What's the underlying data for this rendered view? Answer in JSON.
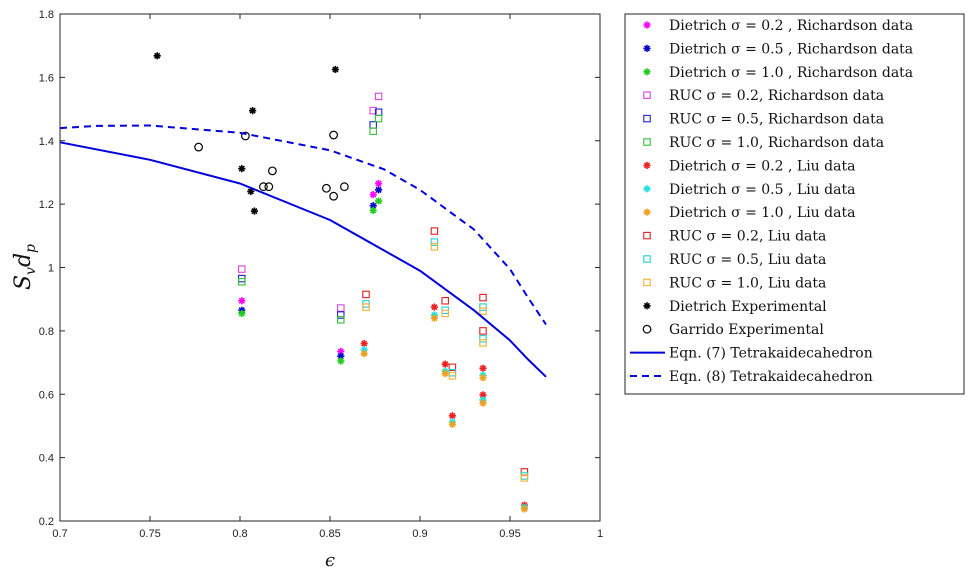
{
  "chart_data": {
    "type": "scatter",
    "title": "",
    "xlabel": "ϵ",
    "ylabel": "S",
    "ylabel_sub": "v",
    "ylabel_main2": "d",
    "ylabel_sub2": "p",
    "xlim": [
      0.7,
      1.0
    ],
    "ylim": [
      0.2,
      1.8
    ],
    "xticks": [
      "0.7",
      "0.75",
      "0.8",
      "0.85",
      "0.9",
      "0.95",
      "1"
    ],
    "yticks": [
      "0.2",
      "0.4",
      "0.6",
      "0.8",
      "1",
      "1.2",
      "1.4",
      "1.6",
      "1.8"
    ],
    "grid": false,
    "legend_position": "outside-right",
    "series": [
      {
        "name": "Dietrich σ = 0.2 , Richardson data",
        "marker": "asterisk",
        "color": "#ff00ff",
        "points": [
          [
            0.801,
            0.895
          ],
          [
            0.856,
            0.735
          ],
          [
            0.874,
            1.23
          ],
          [
            0.877,
            1.265
          ]
        ]
      },
      {
        "name": "Dietrich σ = 0.5 , Richardson data",
        "marker": "asterisk",
        "color": "#0000cc",
        "points": [
          [
            0.801,
            0.865
          ],
          [
            0.856,
            0.72
          ],
          [
            0.874,
            1.195
          ],
          [
            0.877,
            1.245
          ]
        ]
      },
      {
        "name": "Dietrich σ = 1.0 , Richardson data",
        "marker": "asterisk",
        "color": "#22cc22",
        "points": [
          [
            0.801,
            0.855
          ],
          [
            0.856,
            0.705
          ],
          [
            0.874,
            1.18
          ],
          [
            0.877,
            1.21
          ]
        ]
      },
      {
        "name": "RUC σ = 0.2, Richardson data",
        "marker": "square",
        "color": "#e040e0",
        "points": [
          [
            0.801,
            0.995
          ],
          [
            0.856,
            0.872
          ],
          [
            0.874,
            1.495
          ],
          [
            0.877,
            1.54
          ]
        ]
      },
      {
        "name": "RUC σ = 0.5, Richardson data",
        "marker": "square",
        "color": "#2020cc",
        "points": [
          [
            0.801,
            0.965
          ],
          [
            0.856,
            0.85
          ],
          [
            0.874,
            1.45
          ],
          [
            0.877,
            1.49
          ]
        ]
      },
      {
        "name": "RUC σ = 1.0, Richardson data",
        "marker": "square",
        "color": "#30c030",
        "points": [
          [
            0.801,
            0.955
          ],
          [
            0.856,
            0.835
          ],
          [
            0.874,
            1.43
          ],
          [
            0.877,
            1.47
          ]
        ]
      },
      {
        "name": "Dietrich σ = 0.2 , Liu data",
        "marker": "asterisk",
        "color": "#ee2020",
        "points": [
          [
            0.869,
            0.76
          ],
          [
            0.908,
            0.875
          ],
          [
            0.914,
            0.695
          ],
          [
            0.918,
            0.532
          ],
          [
            0.935,
            0.682
          ],
          [
            0.935,
            0.598
          ],
          [
            0.958,
            0.25
          ]
        ]
      },
      {
        "name": "Dietrich σ = 0.5 , Liu data",
        "marker": "asterisk",
        "color": "#20e0e0",
        "points": [
          [
            0.869,
            0.74
          ],
          [
            0.908,
            0.85
          ],
          [
            0.914,
            0.672
          ],
          [
            0.918,
            0.512
          ],
          [
            0.935,
            0.66
          ],
          [
            0.935,
            0.582
          ],
          [
            0.958,
            0.243
          ]
        ]
      },
      {
        "name": "Dietrich σ = 1.0 , Liu data",
        "marker": "asterisk",
        "color": "#f0a020",
        "points": [
          [
            0.869,
            0.728
          ],
          [
            0.908,
            0.84
          ],
          [
            0.914,
            0.665
          ],
          [
            0.918,
            0.505
          ],
          [
            0.935,
            0.652
          ],
          [
            0.935,
            0.572
          ],
          [
            0.958,
            0.238
          ]
        ]
      },
      {
        "name": "RUC σ = 0.2, Liu data",
        "marker": "square",
        "color": "#dd2020",
        "points": [
          [
            0.87,
            0.915
          ],
          [
            0.908,
            1.115
          ],
          [
            0.914,
            0.895
          ],
          [
            0.918,
            0.685
          ],
          [
            0.935,
            0.905
          ],
          [
            0.935,
            0.8
          ],
          [
            0.958,
            0.355
          ]
        ]
      },
      {
        "name": "RUC σ = 0.5, Liu data",
        "marker": "square",
        "color": "#20d0d0",
        "points": [
          [
            0.87,
            0.885
          ],
          [
            0.908,
            1.08
          ],
          [
            0.914,
            0.865
          ],
          [
            0.918,
            0.668
          ],
          [
            0.935,
            0.875
          ],
          [
            0.935,
            0.775
          ],
          [
            0.958,
            0.342
          ]
        ]
      },
      {
        "name": "RUC σ = 1.0, Liu data",
        "marker": "square",
        "color": "#f0b030",
        "points": [
          [
            0.87,
            0.875
          ],
          [
            0.908,
            1.065
          ],
          [
            0.914,
            0.855
          ],
          [
            0.918,
            0.658
          ],
          [
            0.935,
            0.862
          ],
          [
            0.935,
            0.762
          ],
          [
            0.958,
            0.336
          ]
        ]
      },
      {
        "name": "Dietrich Experimental",
        "marker": "asterisk",
        "color": "#000000",
        "points": [
          [
            0.754,
            1.668
          ],
          [
            0.801,
            1.312
          ],
          [
            0.806,
            1.24
          ],
          [
            0.807,
            1.495
          ],
          [
            0.808,
            1.178
          ],
          [
            0.853,
            1.625
          ]
        ]
      },
      {
        "name": "Garrido Experimental",
        "marker": "circle",
        "color": "#000000",
        "points": [
          [
            0.777,
            1.38
          ],
          [
            0.803,
            1.415
          ],
          [
            0.813,
            1.255
          ],
          [
            0.816,
            1.255
          ],
          [
            0.818,
            1.305
          ],
          [
            0.848,
            1.25
          ],
          [
            0.852,
            1.225
          ],
          [
            0.852,
            1.418
          ],
          [
            0.858,
            1.255
          ]
        ]
      },
      {
        "name": "Eqn. (7) Tetrakaidecahedron",
        "marker": "solid-line",
        "color": "#0000dd",
        "points": [
          [
            0.7,
            1.395
          ],
          [
            0.75,
            1.34
          ],
          [
            0.8,
            1.265
          ],
          [
            0.85,
            1.15
          ],
          [
            0.9,
            0.99
          ],
          [
            0.93,
            0.865
          ],
          [
            0.95,
            0.77
          ],
          [
            0.96,
            0.71
          ],
          [
            0.97,
            0.655
          ]
        ]
      },
      {
        "name": "Eqn. (8) Tetrakaidecahedron",
        "marker": "dashed-line",
        "color": "#0000dd",
        "points": [
          [
            0.7,
            1.44
          ],
          [
            0.72,
            1.447
          ],
          [
            0.75,
            1.448
          ],
          [
            0.8,
            1.425
          ],
          [
            0.85,
            1.37
          ],
          [
            0.88,
            1.31
          ],
          [
            0.9,
            1.245
          ],
          [
            0.93,
            1.12
          ],
          [
            0.95,
            0.995
          ],
          [
            0.96,
            0.905
          ],
          [
            0.97,
            0.82
          ]
        ]
      }
    ]
  }
}
